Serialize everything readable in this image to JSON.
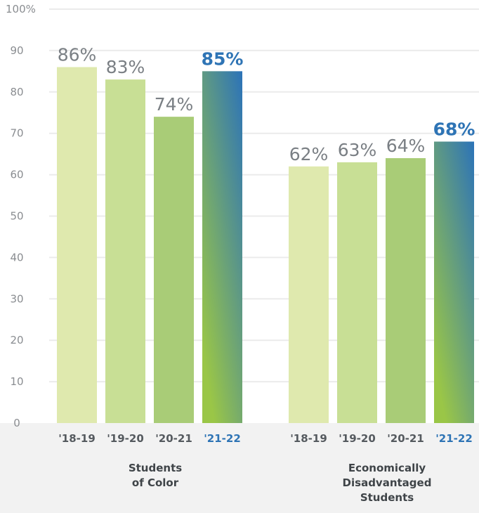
{
  "chart_data": {
    "type": "bar",
    "ylim": [
      0,
      100
    ],
    "yticks": [
      "0",
      "10",
      "20",
      "30",
      "40",
      "50",
      "60",
      "70",
      "80",
      "90",
      "100%"
    ],
    "grid": true,
    "colors": {
      "bars": [
        "#dfe9ae",
        "#c8df95",
        "#a9cc77"
      ],
      "highlight_top": "#2c73b8",
      "highlight_bottom": "#9ac647",
      "highlight_text": "#2e74b5",
      "grid": "#ebebeb",
      "axis_band": "#f2f2f2"
    },
    "groups": [
      {
        "label_lines": [
          "Students",
          "of Color"
        ],
        "categories": [
          "'18-19",
          "'19-20",
          "'20-21",
          "'21-22"
        ],
        "values": [
          86,
          83,
          74,
          85
        ],
        "labels": [
          "86%",
          "83%",
          "74%",
          "85%"
        ]
      },
      {
        "label_lines": [
          "Economically",
          "Disadvantaged",
          "Students"
        ],
        "categories": [
          "'18-19",
          "'19-20",
          "'20-21",
          "'21-22"
        ],
        "values": [
          62,
          63,
          64,
          68
        ],
        "labels": [
          "62%",
          "63%",
          "64%",
          "68%"
        ]
      }
    ]
  }
}
